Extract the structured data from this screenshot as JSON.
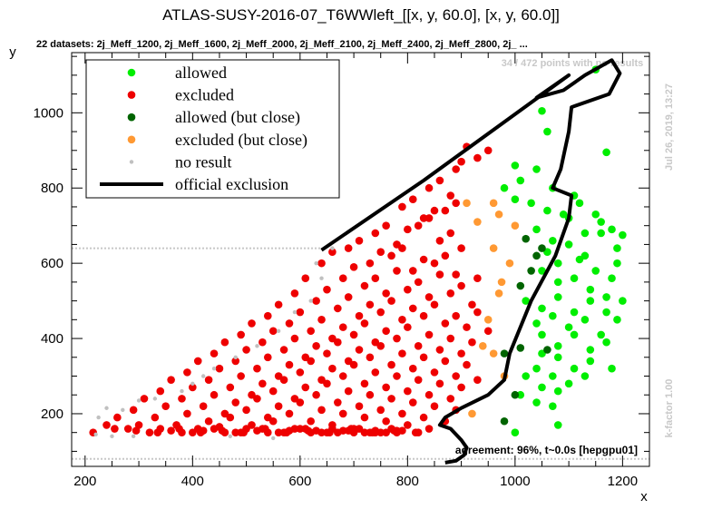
{
  "chart_data": {
    "type": "scatter",
    "title": "ATLAS-SUSY-2016-07_T6WWleft_[[x, y, 60.0], [x, y, 60.0]]",
    "subtitle": "22 datasets: 2j_Meff_1200, 2j_Meff_1600, 2j_Meff_2000, 2j_Meff_2100, 2j_Meff_2400, 2j_Meff_2800, 2j_ ...",
    "xlabel": "x",
    "ylabel": "y",
    "xlim": [
      175,
      1250
    ],
    "ylim": [
      60,
      1160
    ],
    "xticks": [
      200,
      400,
      600,
      800,
      1000,
      1200
    ],
    "yticks": [
      200,
      400,
      600,
      800,
      1000
    ],
    "no_results_note": "34 / 472 points with no results",
    "timestamp": "Jul 26, 2019, 13:27",
    "kfactor": "k-factor 1.00",
    "agreement": "agreement: 96%, t~0.0s [hepgpu01]",
    "legend": {
      "placement": "top-left",
      "entries": [
        {
          "label": "allowed",
          "kind": "marker",
          "color": "#00ee00"
        },
        {
          "label": "excluded",
          "kind": "marker",
          "color": "#ee0000"
        },
        {
          "label": "allowed (but close)",
          "kind": "marker",
          "color": "#006400"
        },
        {
          "label": "excluded (but close)",
          "kind": "marker",
          "color": "#ff9933"
        },
        {
          "label": "no result",
          "kind": "smallmarker",
          "color": "#c0c0c0"
        },
        {
          "label": "official exclusion",
          "kind": "line",
          "color": "#000000"
        }
      ]
    },
    "series": [
      {
        "name": "allowed",
        "color": "#00ee00",
        "x": [
          1150,
          1050,
          1060,
          1170,
          1000,
          1010,
          1040,
          1070,
          1110,
          980,
          1000,
          1030,
          1060,
          1090,
          1120,
          1150,
          1180,
          1200,
          1100,
          1130,
          1160,
          1190,
          1040,
          1070,
          1100,
          1130,
          1160,
          1190,
          1060,
          1080,
          1120,
          1150,
          1180,
          1050,
          1080,
          1110,
          1140,
          1170,
          1200,
          1020,
          1050,
          1080,
          1110,
          1140,
          1170,
          1190,
          1040,
          1070,
          1100,
          1130,
          1160,
          1050,
          1080,
          1110,
          1140,
          1170,
          1050,
          1080,
          1110,
          1140,
          1180,
          1040,
          1070,
          1100,
          1130,
          1020,
          1050,
          1080,
          1010,
          1040,
          1070,
          1000,
          1080
        ],
        "y": [
          1115,
          1005,
          950,
          895,
          860,
          820,
          850,
          800,
          780,
          800,
          770,
          760,
          740,
          730,
          760,
          730,
          690,
          675,
          720,
          680,
          710,
          640,
          690,
          660,
          650,
          620,
          680,
          600,
          630,
          600,
          610,
          580,
          560,
          580,
          550,
          560,
          530,
          510,
          500,
          500,
          480,
          510,
          470,
          500,
          470,
          450,
          440,
          460,
          430,
          450,
          410,
          410,
          380,
          410,
          370,
          390,
          360,
          350,
          320,
          340,
          320,
          320,
          300,
          280,
          300,
          300,
          270,
          260,
          250,
          230,
          220,
          150,
          170
        ]
      },
      {
        "name": "excluded",
        "color": "#ee0000",
        "x": [
          910,
          930,
          890,
          950,
          860,
          900,
          840,
          880,
          810,
          850,
          890,
          790,
          830,
          870,
          760,
          800,
          840,
          880,
          740,
          780,
          820,
          860,
          900,
          710,
          750,
          790,
          830,
          870,
          690,
          730,
          770,
          810,
          850,
          890,
          930,
          660,
          700,
          740,
          780,
          820,
          860,
          900,
          640,
          680,
          720,
          760,
          800,
          840,
          880,
          920,
          610,
          650,
          690,
          730,
          770,
          810,
          850,
          890,
          930,
          590,
          630,
          670,
          710,
          750,
          790,
          830,
          870,
          910,
          950,
          560,
          600,
          640,
          680,
          720,
          760,
          800,
          840,
          880,
          920,
          540,
          580,
          620,
          660,
          700,
          740,
          780,
          820,
          860,
          900,
          510,
          550,
          590,
          630,
          670,
          710,
          750,
          790,
          830,
          870,
          910,
          490,
          530,
          570,
          610,
          650,
          690,
          730,
          770,
          810,
          850,
          890,
          930,
          460,
          500,
          540,
          580,
          620,
          660,
          700,
          740,
          780,
          820,
          860,
          900,
          440,
          480,
          520,
          560,
          600,
          640,
          680,
          720,
          760,
          800,
          840,
          880,
          410,
          450,
          490,
          530,
          570,
          610,
          650,
          690,
          730,
          770,
          810,
          850,
          890,
          390,
          430,
          470,
          510,
          550,
          590,
          630,
          670,
          710,
          750,
          790,
          830,
          870,
          360,
          400,
          440,
          480,
          520,
          560,
          600,
          640,
          680,
          720,
          760,
          800,
          840,
          340,
          380,
          420,
          460,
          500,
          540,
          580,
          620,
          660,
          700,
          740,
          780,
          820,
          310,
          350,
          390,
          430,
          470,
          510,
          550,
          590,
          630,
          670,
          710,
          750,
          790,
          290,
          330,
          370,
          410,
          450,
          490,
          530,
          570,
          610,
          650,
          690,
          730,
          770,
          260,
          300,
          340,
          380,
          420,
          460,
          500,
          540,
          580,
          620,
          660,
          700,
          740,
          780,
          240,
          280,
          320,
          360,
          400,
          440,
          480,
          520,
          560,
          600,
          640,
          680,
          720,
          760,
          215,
          255,
          295,
          335,
          375,
          415,
          455,
          495,
          535,
          575,
          615,
          655,
          695,
          735,
          775,
          815
        ],
        "y": [
          910,
          880,
          850,
          900,
          820,
          870,
          800,
          780,
          770,
          740,
          760,
          750,
          720,
          740,
          700,
          690,
          720,
          680,
          680,
          650,
          700,
          660,
          640,
          660,
          630,
          640,
          610,
          620,
          640,
          600,
          620,
          580,
          600,
          570,
          560,
          630,
          590,
          560,
          580,
          550,
          570,
          540,
          600,
          560,
          540,
          520,
          530,
          510,
          520,
          490,
          560,
          530,
          510,
          490,
          500,
          480,
          490,
          460,
          470,
          520,
          500,
          480,
          460,
          470,
          450,
          460,
          440,
          430,
          420,
          490,
          470,
          450,
          430,
          440,
          420,
          430,
          410,
          400,
          390,
          460,
          440,
          420,
          400,
          410,
          390,
          400,
          380,
          370,
          360,
          440,
          420,
          400,
          380,
          390,
          370,
          380,
          360,
          350,
          340,
          330,
          410,
          390,
          370,
          350,
          360,
          340,
          350,
          330,
          320,
          310,
          300,
          290,
          390,
          370,
          350,
          330,
          340,
          320,
          330,
          310,
          300,
          290,
          280,
          270,
          360,
          340,
          320,
          300,
          310,
          290,
          300,
          280,
          270,
          260,
          250,
          240,
          340,
          320,
          300,
          280,
          290,
          270,
          280,
          260,
          250,
          240,
          230,
          220,
          210,
          310,
          290,
          270,
          250,
          260,
          240,
          250,
          230,
          220,
          210,
          200,
          190,
          180,
          290,
          270,
          250,
          230,
          240,
          220,
          230,
          210,
          200,
          190,
          180,
          170,
          160,
          260,
          240,
          220,
          200,
          210,
          190,
          200,
          180,
          170,
          160,
          150,
          155,
          150,
          240,
          220,
          200,
          180,
          190,
          170,
          180,
          160,
          155,
          150,
          160,
          150,
          155,
          210,
          190,
          170,
          160,
          165,
          150,
          160,
          150,
          160,
          150,
          155,
          150,
          160,
          190,
          170,
          160,
          150,
          155,
          150,
          160,
          150,
          155,
          150,
          160,
          150,
          155,
          150,
          170,
          160,
          150,
          155,
          150,
          160,
          150,
          155,
          150,
          160,
          150,
          155,
          150,
          150,
          150,
          160,
          155,
          150,
          160,
          150,
          155,
          150,
          160,
          150,
          155,
          150,
          160,
          150,
          155,
          150
        ]
      },
      {
        "name": "allowed (but close)",
        "color": "#006400",
        "x": [
          1020,
          1050,
          1040,
          1030,
          1010,
          980,
          1000,
          1010,
          1060,
          980
        ],
        "y": [
          665,
          640,
          620,
          580,
          540,
          360,
          250,
          375,
          370,
          180
        ]
      },
      {
        "name": "excluded (but close)",
        "color": "#ff9933",
        "x": [
          910,
          930,
          960,
          970,
          1000,
          990,
          960,
          975,
          970,
          950,
          940,
          960,
          980,
          920
        ],
        "y": [
          760,
          710,
          760,
          730,
          700,
          600,
          640,
          550,
          520,
          450,
          380,
          360,
          300,
          200
        ]
      },
      {
        "name": "no result",
        "color": "#c0c0c0",
        "x": [
          225,
          240,
          270,
          300,
          330,
          380,
          400,
          420,
          440,
          480,
          520,
          560,
          590,
          620,
          640,
          660,
          220,
          250,
          290,
          470,
          550,
          630
        ],
        "y": [
          190,
          215,
          210,
          235,
          240,
          260,
          280,
          300,
          320,
          350,
          380,
          420,
          470,
          500,
          560,
          640,
          145,
          140,
          140,
          140,
          135,
          600
        ]
      }
    ],
    "exclusion_line": {
      "x": [
        640,
        830,
        1100,
        1040,
        1090,
        1130,
        1180,
        1195,
        1175,
        1105,
        1100,
        1085,
        1070,
        1105,
        1100,
        1075,
        1030,
        990,
        980,
        950,
        900,
        870,
        860,
        880,
        900,
        910,
        905,
        890,
        870
      ],
      "y": [
        635,
        820,
        1100,
        1040,
        1060,
        1100,
        1140,
        1105,
        1050,
        1015,
        950,
        850,
        800,
        780,
        720,
        620,
        500,
        360,
        290,
        250,
        215,
        190,
        170,
        160,
        130,
        110,
        90,
        75,
        70
      ]
    },
    "reference_lines": [
      {
        "y": 640,
        "x": [
          175,
          640
        ],
        "color": "#c8c8c8",
        "style": "dotted"
      },
      {
        "y": 80,
        "x": [
          175,
          1250
        ],
        "color": "#c8c8c8",
        "style": "dotted"
      }
    ]
  }
}
